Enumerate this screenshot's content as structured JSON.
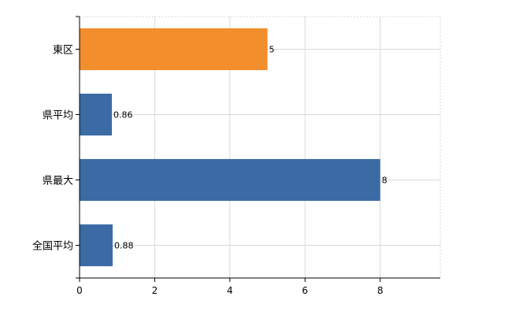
{
  "chart_data": {
    "type": "bar",
    "orientation": "horizontal",
    "categories": [
      "東区",
      "県平均",
      "県最大",
      "全国平均"
    ],
    "values": [
      5,
      0.86,
      8,
      0.88
    ],
    "value_labels": [
      "5",
      "0.86",
      "8",
      "0.88"
    ],
    "bar_colors": [
      "#f28e2b",
      "#3b6ba5",
      "#3b6ba5",
      "#3b6ba5"
    ],
    "xlim": [
      0,
      9.6
    ],
    "xticks": [
      0,
      2,
      4,
      6,
      8
    ],
    "xtick_labels": [
      "0",
      "2",
      "4",
      "6",
      "8"
    ],
    "grid": true,
    "title": "",
    "xlabel": "",
    "ylabel": ""
  }
}
